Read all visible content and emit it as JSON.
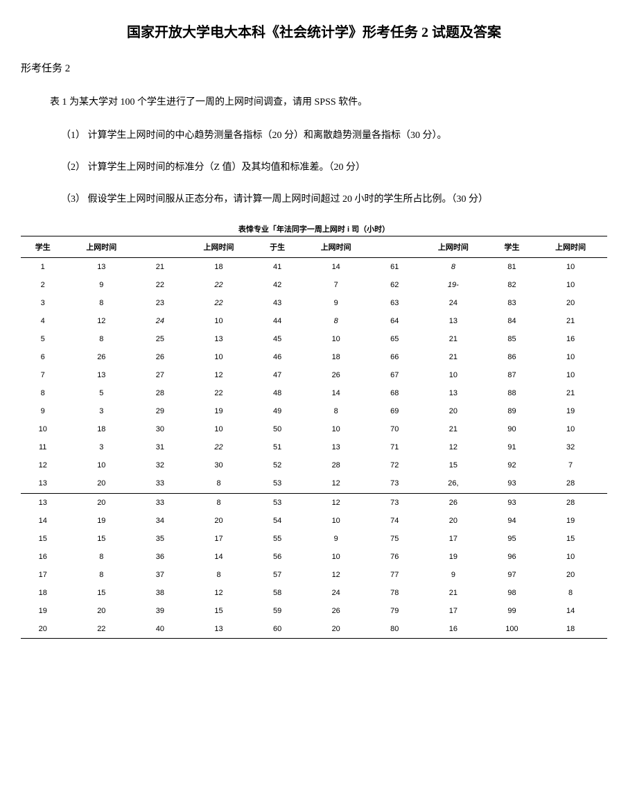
{
  "title": "国家开放大学电大本科《社会统计学》形考任务 2 试题及答案",
  "subtitle": "形考任务 2",
  "intro": "表 1 为某大学对 100 个学生进行了一周的上网时间调查，请用 SPSS 软件。",
  "questions": [
    "（1） 计算学生上网时间的中心趋势测量各指标（20 分）和离散趋势测量各指标（30 分）。",
    "（2） 计算学生上网时间的标准分（Z 值）及其均值和标准差。（20 分）",
    "（3） 假设学生上网时间服从正态分布，请计算一周上网时间超过 20 小时的学生所占比例。（30 分）"
  ],
  "tableCaption": "表悻专业「年法同字一周上网时 i 司（小时）",
  "headers": [
    "学生",
    "上网时间",
    "",
    "上网时间",
    "于生",
    "上网时间",
    "",
    "上网时间",
    "学生",
    "上网时间"
  ],
  "rows1": [
    [
      "1",
      "13",
      "21",
      "18",
      "41",
      "14",
      "61",
      "8",
      "81",
      "10"
    ],
    [
      "2",
      "9",
      "22",
      "22",
      "42",
      "7",
      "62",
      "19-",
      "82",
      "10"
    ],
    [
      "3",
      "8",
      "23",
      "22",
      "43",
      "9",
      "63",
      "24",
      "83",
      "20"
    ],
    [
      "4",
      "12",
      "24",
      "10",
      "44",
      "8",
      "64",
      "13",
      "84",
      "21"
    ],
    [
      "5",
      "8",
      "25",
      "13",
      "45",
      "10",
      "65",
      "21",
      "85",
      "16"
    ],
    [
      "6",
      "26",
      "26",
      "10",
      "46",
      "18",
      "66",
      "21",
      "86",
      "10"
    ],
    [
      "7",
      "13",
      "27",
      "12",
      "47",
      "26",
      "67",
      "10",
      "87",
      "10"
    ],
    [
      "8",
      "5",
      "28",
      "22",
      "48",
      "14",
      "68",
      "13",
      "88",
      "21"
    ],
    [
      "9",
      "3",
      "29",
      "19",
      "49",
      "8",
      "69",
      "20",
      "89",
      "19"
    ],
    [
      "10",
      "18",
      "30",
      "10",
      "50",
      "10",
      "70",
      "21",
      "90",
      "10"
    ],
    [
      "11",
      "3",
      "31",
      "22",
      "51",
      "13",
      "71",
      "12",
      "91",
      "32"
    ],
    [
      "12",
      "10",
      "32",
      "30",
      "52",
      "28",
      "72",
      "15",
      "92",
      "7"
    ],
    [
      "13",
      "20",
      "33",
      "8",
      "53",
      "12",
      "73",
      "26,",
      "93",
      "28"
    ]
  ],
  "rows2": [
    [
      "13",
      "20",
      "33",
      "8",
      "53",
      "12",
      "73",
      "26",
      "93",
      "28"
    ],
    [
      "14",
      "19",
      "34",
      "20",
      "54",
      "10",
      "74",
      "20",
      "94",
      "19"
    ],
    [
      "15",
      "15",
      "35",
      "17",
      "55",
      "9",
      "75",
      "17",
      "95",
      "15"
    ],
    [
      "16",
      "8",
      "36",
      "14",
      "56",
      "10",
      "76",
      "19",
      "96",
      "10"
    ],
    [
      "17",
      "8",
      "37",
      "8",
      "57",
      "12",
      "77",
      "9",
      "97",
      "20"
    ],
    [
      "18",
      "15",
      "38",
      "12",
      "58",
      "24",
      "78",
      "21",
      "98",
      "8"
    ],
    [
      "19",
      "20",
      "39",
      "15",
      "59",
      "26",
      "79",
      "17",
      "99",
      "14"
    ],
    [
      "20",
      "22",
      "40",
      "13",
      "60",
      "20",
      "80",
      "16",
      "100",
      "18"
    ]
  ],
  "italicCells": {
    "rows1": [
      [
        0,
        7
      ],
      [
        1,
        3
      ],
      [
        1,
        7
      ],
      [
        2,
        3
      ],
      [
        3,
        2
      ],
      [
        3,
        5
      ],
      [
        10,
        3
      ]
    ]
  },
  "styling": {
    "backgroundColor": "#ffffff",
    "textColor": "#000000",
    "titleFontSize": 20,
    "bodyFontSize": 14,
    "tableFontSize": 11,
    "tableBorderColor": "#000000",
    "pageWidth": 906,
    "pageHeight": 1168
  }
}
